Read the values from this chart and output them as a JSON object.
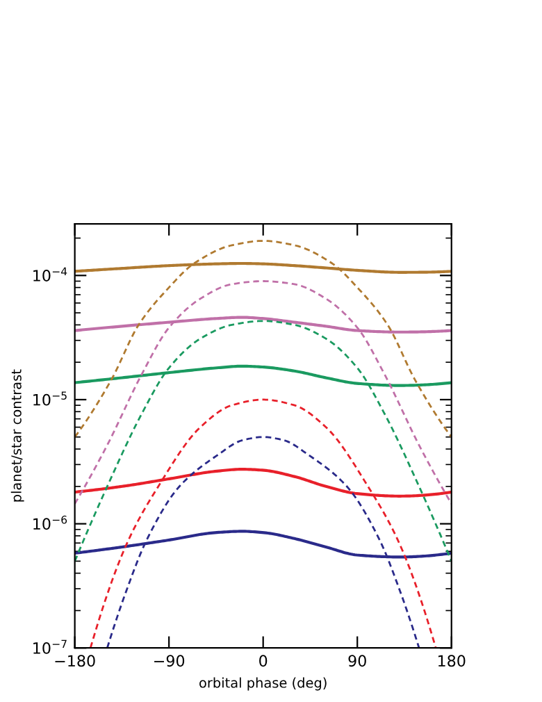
{
  "chart_data": {
    "type": "line",
    "xlabel": "orbital phase (deg)",
    "ylabel": "planet/star contrast",
    "log": "y",
    "xlim": [
      -180,
      180
    ],
    "ylim": [
      1e-07,
      0.00026
    ],
    "xticks": [
      {
        "value": -180,
        "label": "−180"
      },
      {
        "value": -90,
        "label": "−90"
      },
      0,
      90,
      180
    ],
    "yticks": [
      {
        "value": 1e-07,
        "label": "10$^{−7}$"
      },
      {
        "value": 1e-06,
        "label": "10$^{−6}$"
      },
      {
        "value": 1e-05,
        "label": "10$^{−5}$"
      },
      {
        "value": 0.0001,
        "label": "10$^{−4}$"
      }
    ],
    "grid": false,
    "marker": "none",
    "series": [
      {
        "color": "#b07a30",
        "line_style": "solid",
        "x": [
          -180,
          -135,
          -90,
          -45,
          -20,
          0,
          30,
          60,
          90,
          130,
          180
        ],
        "values": [
          0.000108,
          0.000114,
          0.00012,
          0.000124,
          0.000125,
          0.000124,
          0.00012,
          0.000115,
          0.00011,
          0.000106,
          0.000108
        ]
      },
      {
        "color": "#c070a8",
        "line_style": "solid",
        "x": [
          -180,
          -135,
          -90,
          -45,
          -20,
          0,
          30,
          60,
          90,
          130,
          180
        ],
        "values": [
          3.6e-05,
          3.9e-05,
          4.2e-05,
          4.5e-05,
          4.6e-05,
          4.5e-05,
          4.2e-05,
          3.9e-05,
          3.6e-05,
          3.5e-05,
          3.6e-05
        ]
      },
      {
        "color": "#1a9a60",
        "line_style": "solid",
        "x": [
          -180,
          -135,
          -90,
          -45,
          -20,
          0,
          30,
          60,
          90,
          130,
          180
        ],
        "values": [
          1.37e-05,
          1.5e-05,
          1.65e-05,
          1.8e-05,
          1.86e-05,
          1.83e-05,
          1.7e-05,
          1.5e-05,
          1.35e-05,
          1.3e-05,
          1.37e-05
        ]
      },
      {
        "color": "#e8202a",
        "line_style": "solid",
        "x": [
          -180,
          -135,
          -90,
          -45,
          -20,
          0,
          30,
          60,
          90,
          130,
          180
        ],
        "values": [
          1.8e-06,
          2e-06,
          2.3e-06,
          2.65e-06,
          2.75e-06,
          2.7e-06,
          2.4e-06,
          2e-06,
          1.75e-06,
          1.67e-06,
          1.8e-06
        ]
      },
      {
        "color": "#2a2a8a",
        "line_style": "solid",
        "x": [
          -180,
          -135,
          -90,
          -45,
          -20,
          0,
          30,
          60,
          90,
          130,
          180
        ],
        "values": [
          5.8e-07,
          6.5e-07,
          7.4e-07,
          8.5e-07,
          8.7e-07,
          8.5e-07,
          7.6e-07,
          6.5e-07,
          5.6e-07,
          5.4e-07,
          5.8e-07
        ]
      },
      {
        "color": "#b07a30",
        "line_style": "dashed",
        "x": [
          -180,
          -145,
          -119,
          -90,
          -66,
          -30,
          0,
          30,
          66,
          90,
          119,
          145,
          180
        ],
        "values": [
          5e-06,
          1.45e-05,
          4e-05,
          8e-05,
          0.000125,
          0.000175,
          0.00019,
          0.000175,
          0.000125,
          8e-05,
          4e-05,
          1.45e-05,
          5e-06
        ]
      },
      {
        "color": "#c070a8",
        "line_style": "dashed",
        "x": [
          -180,
          -149,
          -116,
          -90,
          -60,
          -30,
          0,
          30,
          60,
          90,
          116,
          149,
          180
        ],
        "values": [
          1.45e-06,
          4.3e-06,
          1.6e-05,
          3.8e-05,
          6.5e-05,
          8.5e-05,
          9e-05,
          8.5e-05,
          6.5e-05,
          3.8e-05,
          1.6e-05,
          4.3e-06,
          1.45e-06
        ]
      },
      {
        "color": "#1a9a60",
        "line_style": "dashed",
        "x": [
          -180,
          -149,
          -116,
          -90,
          -60,
          -30,
          0,
          30,
          60,
          90,
          116,
          149,
          180
        ],
        "values": [
          5e-07,
          2e-06,
          7.7e-06,
          1.8e-05,
          3.1e-05,
          4e-05,
          4.3e-05,
          4e-05,
          3.1e-05,
          1.8e-05,
          7.7e-06,
          2e-06,
          5e-07
        ]
      },
      {
        "color": "#e8202a",
        "line_style": "dashed",
        "x": [
          -165,
          -130,
          -101,
          -60,
          -30,
          0,
          30,
          60,
          101,
          130,
          165
        ],
        "values": [
          1e-07,
          7e-07,
          1.95e-06,
          6e-06,
          9e-06,
          1e-05,
          9e-06,
          6e-06,
          1.95e-06,
          7e-07,
          1e-07
        ]
      },
      {
        "color": "#2a2a8a",
        "line_style": "dashed",
        "x": [
          -149,
          -130,
          -111,
          -80,
          -43,
          -20,
          0,
          20,
          43,
          80,
          111,
          130,
          149
        ],
        "values": [
          1e-07,
          3e-07,
          7.5e-07,
          2e-06,
          3.6e-06,
          4.7e-06,
          5e-06,
          4.7e-06,
          3.6e-06,
          2e-06,
          7.5e-07,
          3e-07,
          1e-07
        ]
      }
    ]
  }
}
